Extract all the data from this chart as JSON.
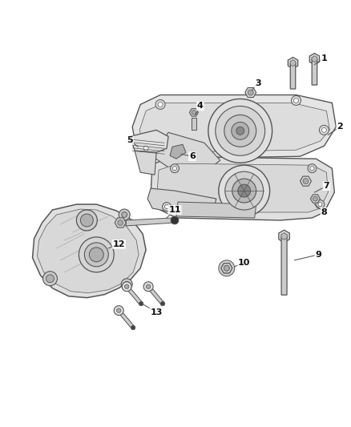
{
  "bg_color": "#ffffff",
  "line_color": "#555555",
  "figsize": [
    4.38,
    5.33
  ],
  "dpi": 100,
  "parts": {
    "top_plate": {
      "color": "#e8e8e8",
      "edge": "#555555"
    },
    "bracket": {
      "color": "#d8d8d8",
      "edge": "#555555"
    },
    "bracket12": {
      "color": "#e0e0e0",
      "edge": "#555555"
    }
  }
}
